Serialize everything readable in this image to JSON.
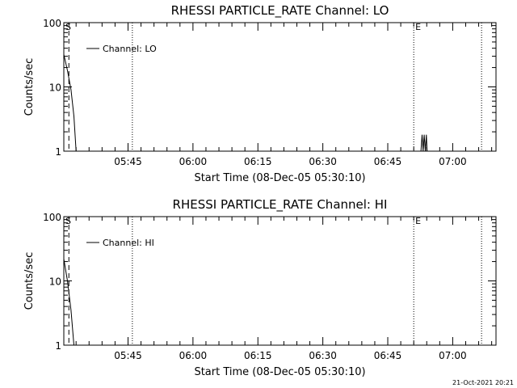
{
  "chart_data": [
    {
      "type": "line",
      "title": "RHESSI PARTICLE_RATE Channel: LO",
      "xlabel": "Start Time (08-Dec-05 05:30:10)",
      "ylabel": "Counts/sec",
      "yscale": "log",
      "ylim": [
        1,
        100
      ],
      "xlim": [
        "05:30:10",
        "07:10:00"
      ],
      "xticks": [
        "05:45",
        "06:00",
        "06:15",
        "06:30",
        "06:45",
        "07:00"
      ],
      "yticks": [
        "1",
        "10",
        "100"
      ],
      "legend": {
        "label": "Channel: LO",
        "position": "top-left"
      },
      "markers": [
        {
          "label": "S",
          "time": "05:30:10",
          "style": "solid"
        },
        {
          "label": "",
          "time": "05:31:20",
          "style": "dashed"
        },
        {
          "label": "",
          "time": "05:46:00",
          "style": "dotted"
        },
        {
          "label": "E",
          "time": "06:51:00",
          "style": "dotted"
        },
        {
          "label": "",
          "time": "07:06:40",
          "style": "dotted"
        }
      ],
      "series": [
        {
          "name": "Channel: LO",
          "points": [
            [
              "05:30:10",
              32
            ],
            [
              "05:31:00",
              18
            ],
            [
              "05:31:50",
              9
            ],
            [
              "05:32:30",
              3.5
            ],
            [
              "05:33:00",
              1
            ],
            [
              "06:52:40",
              1
            ],
            [
              "06:52:55",
              1.8
            ],
            [
              "06:53:10",
              1
            ],
            [
              "06:53:25",
              1.8
            ],
            [
              "06:53:40",
              1
            ],
            [
              "06:53:55",
              1.8
            ],
            [
              "06:54:05",
              1
            ]
          ]
        }
      ]
    },
    {
      "type": "line",
      "title": "RHESSI PARTICLE_RATE Channel: HI",
      "xlabel": "Start Time (08-Dec-05 05:30:10)",
      "ylabel": "Counts/sec",
      "yscale": "log",
      "ylim": [
        1,
        100
      ],
      "xlim": [
        "05:30:10",
        "07:10:00"
      ],
      "xticks": [
        "05:45",
        "06:00",
        "06:15",
        "06:30",
        "06:45",
        "07:00"
      ],
      "yticks": [
        "1",
        "10",
        "100"
      ],
      "legend": {
        "label": "Channel: HI",
        "position": "top-left"
      },
      "markers": [
        {
          "label": "S",
          "time": "05:30:10",
          "style": "solid"
        },
        {
          "label": "",
          "time": "05:31:20",
          "style": "dashed"
        },
        {
          "label": "",
          "time": "05:46:00",
          "style": "dotted"
        },
        {
          "label": "E",
          "time": "06:51:00",
          "style": "dotted"
        },
        {
          "label": "",
          "time": "07:06:40",
          "style": "dotted"
        }
      ],
      "series": [
        {
          "name": "Channel: HI",
          "points": [
            [
              "05:30:10",
              22
            ],
            [
              "05:31:00",
              10
            ],
            [
              "05:31:50",
              3.5
            ],
            [
              "05:32:30",
              1
            ]
          ]
        }
      ]
    }
  ],
  "footer": {
    "timestamp": "21-Oct-2021 20:21"
  }
}
